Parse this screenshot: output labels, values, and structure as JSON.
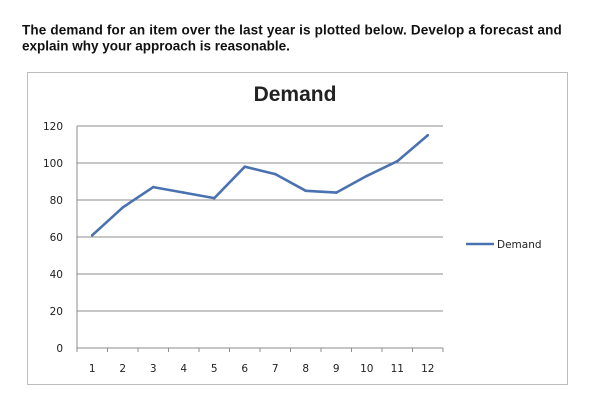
{
  "question": {
    "line1": "The demand for an item over the last year is plotted below. Develop a forecast and",
    "line2": "explain why your approach is reasonable."
  },
  "chart_data": {
    "type": "line",
    "title": "Demand",
    "xlabel": "",
    "ylabel": "",
    "categories": [
      "1",
      "2",
      "3",
      "4",
      "5",
      "6",
      "7",
      "8",
      "9",
      "10",
      "11",
      "12"
    ],
    "series": [
      {
        "name": "Demand",
        "values": [
          61,
          76,
          87,
          84,
          81,
          98,
          94,
          85,
          84,
          93,
          101,
          115
        ],
        "color": "#4a72b0"
      }
    ],
    "ylim": [
      0,
      120
    ],
    "yticks": [
      "0",
      "20",
      "40",
      "60",
      "80",
      "100",
      "120"
    ],
    "grid": true,
    "legend": "right"
  }
}
